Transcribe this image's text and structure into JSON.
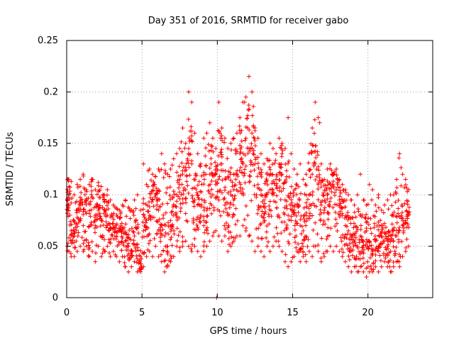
{
  "chart_data": {
    "type": "scatter",
    "title": "Day 351 of 2016, SRMTID for receiver gabo",
    "xlabel": "GPS time / hours",
    "ylabel": "SRMTID / TECUs",
    "xlim": [
      0,
      24.3
    ],
    "ylim": [
      0,
      0.25
    ],
    "xticks": [
      0,
      5,
      10,
      15,
      20
    ],
    "xtick_labels": [
      "0",
      "5",
      "10",
      "15",
      "20"
    ],
    "yticks": [
      0,
      0.05,
      0.1,
      0.15,
      0.2,
      0.25
    ],
    "ytick_labels": [
      "0",
      "0.05",
      "0.1",
      "0.15",
      "0.2",
      "0.25"
    ],
    "grid": true,
    "marker": "+",
    "series": [
      {
        "name": "SRMTID",
        "color": "#ff0000",
        "x": [
          0.05,
          0.15,
          0.3,
          0.5,
          0.7,
          0.9,
          1.1,
          1.3,
          1.5,
          1.7,
          1.9,
          2.1,
          2.3,
          2.5,
          2.7,
          2.9,
          3.1,
          3.3,
          3.5,
          3.7,
          3.9,
          4.1,
          4.3,
          4.5,
          4.7,
          4.9,
          5.1,
          5.3,
          5.5,
          5.7,
          5.9,
          6.1,
          6.3,
          6.5,
          6.7,
          6.9,
          7.1,
          7.3,
          7.5,
          7.7,
          7.9,
          8.1,
          8.3,
          8.5,
          8.7,
          8.9,
          9.1,
          9.3,
          9.5,
          9.7,
          9.9,
          10.1,
          10.3,
          10.5,
          10.7,
          10.9,
          11.1,
          11.3,
          11.5,
          11.7,
          11.9,
          12.1,
          12.3,
          12.5,
          12.7,
          12.9,
          13.1,
          13.3,
          13.5,
          13.7,
          13.9,
          14.1,
          14.3,
          14.5,
          14.7,
          14.9,
          15.1,
          15.3,
          15.5,
          15.7,
          15.9,
          16.1,
          16.3,
          16.5,
          16.7,
          16.9,
          17.1,
          17.3,
          17.5,
          17.7,
          17.9,
          18.1,
          18.3,
          18.5,
          18.7,
          18.9,
          19.1,
          19.3,
          19.5,
          19.7,
          19.9,
          20.1,
          20.3,
          20.5,
          20.7,
          20.9,
          21.1,
          21.3,
          21.5,
          21.7,
          21.9,
          22.1,
          22.3,
          22.5,
          22.7,
          9.95
        ],
        "y": [
          0.085,
          0.108,
          0.065,
          0.06,
          0.078,
          0.09,
          0.07,
          0.095,
          0.082,
          0.115,
          0.07,
          0.088,
          0.075,
          0.095,
          0.08,
          0.068,
          0.072,
          0.06,
          0.065,
          0.058,
          0.055,
          0.05,
          0.045,
          0.06,
          0.052,
          0.04,
          0.065,
          0.075,
          0.08,
          0.095,
          0.1,
          0.085,
          0.07,
          0.06,
          0.05,
          0.075,
          0.09,
          0.1,
          0.11,
          0.12,
          0.105,
          0.14,
          0.13,
          0.095,
          0.09,
          0.08,
          0.07,
          0.085,
          0.12,
          0.1,
          0.11,
          0.095,
          0.13,
          0.09,
          0.08,
          0.1,
          0.105,
          0.12,
          0.14,
          0.13,
          0.155,
          0.145,
          0.16,
          0.13,
          0.11,
          0.1,
          0.095,
          0.12,
          0.105,
          0.1,
          0.115,
          0.13,
          0.12,
          0.095,
          0.08,
          0.075,
          0.085,
          0.09,
          0.07,
          0.065,
          0.08,
          0.1,
          0.12,
          0.13,
          0.11,
          0.09,
          0.085,
          0.1,
          0.11,
          0.12,
          0.105,
          0.095,
          0.08,
          0.07,
          0.065,
          0.06,
          0.055,
          0.05,
          0.06,
          0.055,
          0.065,
          0.05,
          0.045,
          0.055,
          0.05,
          0.06,
          0.055,
          0.05,
          0.045,
          0.055,
          0.06,
          0.065,
          0.07,
          0.075,
          0.08,
          0.0
        ],
        "envelope_high": [
          0.105,
          0.115,
          0.113,
          0.1,
          0.11,
          0.115,
          0.12,
          0.105,
          0.11,
          0.115,
          0.105,
          0.112,
          0.108,
          0.1,
          0.105,
          0.095,
          0.09,
          0.087,
          0.085,
          0.09,
          0.095,
          0.088,
          0.085,
          0.095,
          0.1,
          0.085,
          0.13,
          0.11,
          0.125,
          0.12,
          0.118,
          0.125,
          0.14,
          0.13,
          0.12,
          0.125,
          0.135,
          0.14,
          0.145,
          0.165,
          0.15,
          0.2,
          0.19,
          0.16,
          0.14,
          0.13,
          0.155,
          0.16,
          0.17,
          0.155,
          0.145,
          0.19,
          0.165,
          0.155,
          0.145,
          0.15,
          0.155,
          0.16,
          0.175,
          0.19,
          0.195,
          0.215,
          0.2,
          0.165,
          0.155,
          0.14,
          0.13,
          0.135,
          0.15,
          0.145,
          0.14,
          0.155,
          0.15,
          0.145,
          0.175,
          0.14,
          0.125,
          0.12,
          0.13,
          0.115,
          0.12,
          0.14,
          0.165,
          0.19,
          0.175,
          0.13,
          0.115,
          0.125,
          0.13,
          0.12,
          0.125,
          0.115,
          0.11,
          0.105,
          0.1,
          0.095,
          0.09,
          0.1,
          0.12,
          0.095,
          0.09,
          0.11,
          0.105,
          0.09,
          0.1,
          0.085,
          0.09,
          0.095,
          0.1,
          0.1,
          0.115,
          0.14,
          0.12,
          0.115,
          0.105
        ],
        "envelope_low": [
          0.05,
          0.045,
          0.04,
          0.04,
          0.045,
          0.05,
          0.045,
          0.05,
          0.04,
          0.045,
          0.035,
          0.05,
          0.04,
          0.045,
          0.05,
          0.04,
          0.045,
          0.04,
          0.035,
          0.04,
          0.03,
          0.025,
          0.03,
          0.035,
          0.025,
          0.025,
          0.03,
          0.04,
          0.045,
          0.04,
          0.05,
          0.04,
          0.035,
          0.025,
          0.03,
          0.035,
          0.04,
          0.05,
          0.045,
          0.05,
          0.055,
          0.05,
          0.045,
          0.05,
          0.045,
          0.04,
          0.045,
          0.05,
          0.055,
          0.06,
          0.065,
          0.06,
          0.055,
          0.06,
          0.045,
          0.05,
          0.055,
          0.06,
          0.06,
          0.07,
          0.065,
          0.06,
          0.055,
          0.045,
          0.05,
          0.045,
          0.04,
          0.05,
          0.045,
          0.05,
          0.055,
          0.05,
          0.045,
          0.035,
          0.03,
          0.035,
          0.04,
          0.045,
          0.035,
          0.04,
          0.035,
          0.045,
          0.04,
          0.05,
          0.045,
          0.035,
          0.04,
          0.045,
          0.05,
          0.045,
          0.05,
          0.045,
          0.04,
          0.035,
          0.03,
          0.025,
          0.03,
          0.025,
          0.03,
          0.025,
          0.02,
          0.025,
          0.025,
          0.03,
          0.025,
          0.03,
          0.035,
          0.03,
          0.025,
          0.03,
          0.035,
          0.03,
          0.04,
          0.045,
          0.05
        ]
      }
    ]
  }
}
